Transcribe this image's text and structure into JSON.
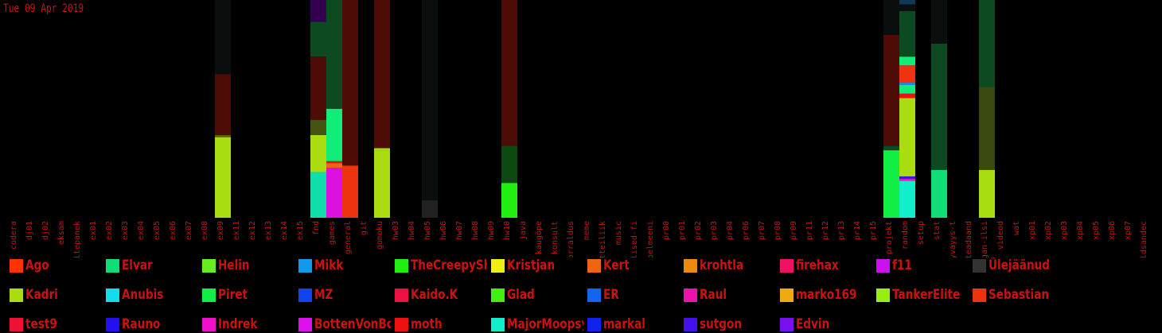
{
  "date_label": "Tue 09 Apr 2019",
  "text_color": "#cc1111",
  "legend": [
    {
      "name": "Ago",
      "color": "#ff3300"
    },
    {
      "name": "Elvar",
      "color": "#11dd77"
    },
    {
      "name": "Helin",
      "color": "#66ee22"
    },
    {
      "name": "Mikk",
      "color": "#1199ee"
    },
    {
      "name": "TheCreepySh",
      "color": "#22ee11"
    },
    {
      "name": "Kristjan",
      "color": "#eeee11"
    },
    {
      "name": "Kert",
      "color": "#ee6611"
    },
    {
      "name": "krohtla",
      "color": "#ee8811"
    },
    {
      "name": "firehax",
      "color": "#ee1166"
    },
    {
      "name": "f11",
      "color": "#cc11ee"
    },
    {
      "name": "Ülejäänud",
      "color": "#333333"
    },
    {
      "name": "Kadri",
      "color": "#aadd11"
    },
    {
      "name": "Anubis",
      "color": "#11ddee"
    },
    {
      "name": "Piret",
      "color": "#11ee44"
    },
    {
      "name": "MZ",
      "color": "#1144ee"
    },
    {
      "name": "Kaido.K",
      "color": "#ee1144"
    },
    {
      "name": "Glad",
      "color": "#44ee11"
    },
    {
      "name": "ER",
      "color": "#1166ee"
    },
    {
      "name": "Raul",
      "color": "#ee11aa"
    },
    {
      "name": "marko169",
      "color": "#eeaa11"
    },
    {
      "name": "TankerElite",
      "color": "#99ee11"
    },
    {
      "name": "Sebastian",
      "color": "#ee3311"
    },
    {
      "name": "test9",
      "color": "#ee1133"
    },
    {
      "name": "Rauno",
      "color": "#2211ee"
    },
    {
      "name": "Indrek",
      "color": "#ee11cc"
    },
    {
      "name": "BottenVonBot",
      "color": "#dd11ee"
    },
    {
      "name": "moth",
      "color": "#ee1111"
    },
    {
      "name": "MajorMoopsy",
      "color": "#11eecc"
    },
    {
      "name": "markal",
      "color": "#1122ee"
    },
    {
      "name": "sutgon",
      "color": "#4411ee"
    },
    {
      "name": "Edvin",
      "color": "#7711ee"
    }
  ],
  "chart_data": {
    "type": "bar",
    "stacked": true,
    "grid": false,
    "categories": [
      "codera",
      "dj01",
      "dj02",
      "eksam",
      "eltepanek",
      "ex01",
      "ex02",
      "ex03",
      "ex04",
      "ex05",
      "ex06",
      "ex07",
      "ex08",
      "ex09",
      "ex11",
      "ex12",
      "ex13",
      "ex14",
      "ex15",
      "fnd",
      "games",
      "general",
      "git",
      "gomoku",
      "hw03",
      "hw04",
      "hw05",
      "hw06",
      "hw07",
      "hw08",
      "hw09",
      "hw10",
      "java",
      "kaugõpe",
      "konsult",
      "korraldus",
      "meme",
      "mitteiliik",
      "music",
      "olulised-fi",
      "pelmeeni",
      "pr00",
      "pr01",
      "pr02",
      "pr03",
      "pr04",
      "pr06",
      "pr07",
      "pr08",
      "pr09",
      "pr11",
      "pr12",
      "pr13",
      "pr14",
      "pr15",
      "projekt",
      "random",
      "setup",
      "stat",
      "syvayys-t",
      "teadaand",
      "vegan-ilsi",
      "videod",
      "wat",
      "xp01",
      "xp02",
      "xp03",
      "xp04",
      "xp05",
      "xp06",
      "xp07",
      "üldsandec"
    ],
    "ylim": [
      0,
      100
    ],
    "series_segments": {
      "ex09": [
        {
          "value": 37,
          "color": "#aadd11"
        },
        {
          "value": 1,
          "color": "#556600"
        },
        {
          "value": 28,
          "color": "#4d0d06"
        },
        {
          "value": 34,
          "color": "#0a0e0c"
        }
      ],
      "fnd": [
        {
          "value": 21,
          "color": "#11ddaa"
        },
        {
          "value": 17,
          "color": "#aadd11"
        },
        {
          "value": 7,
          "color": "#445511"
        },
        {
          "value": 29,
          "color": "#4d0d06"
        },
        {
          "value": 16,
          "color": "#0d4a22"
        },
        {
          "value": 10,
          "color": "#33004d"
        }
      ],
      "games": [
        {
          "value": 23,
          "color": "#dd11dd"
        },
        {
          "value": 2,
          "color": "#ee6611"
        },
        {
          "value": 1,
          "color": "#ee1111"
        },
        {
          "value": 24,
          "color": "#11ee77"
        },
        {
          "value": 50,
          "color": "#0d4a22"
        }
      ],
      "general": [
        {
          "value": 24,
          "color": "#ee3311"
        },
        {
          "value": 76,
          "color": "#4d0d06"
        }
      ],
      "gomoku": [
        {
          "value": 31,
          "color": "#aadd11"
        },
        {
          "value": 1,
          "color": "#aadd11"
        },
        {
          "value": 68,
          "color": "#4d0d06"
        }
      ],
      "hw05": [
        {
          "value": 8,
          "color": "#222222"
        },
        {
          "value": 92,
          "color": "#0a0e0c"
        }
      ],
      "hw10": [
        {
          "value": 16,
          "color": "#22ee11"
        },
        {
          "value": 17,
          "color": "#0d4a11"
        },
        {
          "value": 67,
          "color": "#4d0d06"
        }
      ],
      "projekt": [
        {
          "value": 31,
          "color": "#11ee44"
        },
        {
          "value": 2,
          "color": "#0d4a22"
        },
        {
          "value": 51,
          "color": "#4d0d06"
        },
        {
          "value": 16,
          "color": "#0a0e0c"
        }
      ],
      "random": [
        {
          "value": 17,
          "color": "#11eecc"
        },
        {
          "value": 1,
          "color": "#ee11aa"
        },
        {
          "value": 1,
          "color": "#4411ee"
        },
        {
          "value": 36,
          "color": "#aadd11"
        },
        {
          "value": 2,
          "color": "#ee1111"
        },
        {
          "value": 4,
          "color": "#11ee77"
        },
        {
          "value": 1,
          "color": "#1199ee"
        },
        {
          "value": 8,
          "color": "#ee3311"
        },
        {
          "value": 4,
          "color": "#11ee77"
        },
        {
          "value": 21,
          "color": "#0d4a22"
        },
        {
          "value": 3,
          "color": "#0a0e0c"
        },
        {
          "value": 2,
          "color": "#0d3a55"
        }
      ],
      "stat": [
        {
          "value": 22,
          "color": "#11dd77"
        },
        {
          "value": 58,
          "color": "#0d4a22"
        },
        {
          "value": 20,
          "color": "#0a0e0c"
        }
      ],
      "vegan-ilsi": [
        {
          "value": 22,
          "color": "#aadd11"
        },
        {
          "value": 38,
          "color": "#3a4a11"
        },
        {
          "value": 40,
          "color": "#0d4a22"
        }
      ]
    }
  }
}
